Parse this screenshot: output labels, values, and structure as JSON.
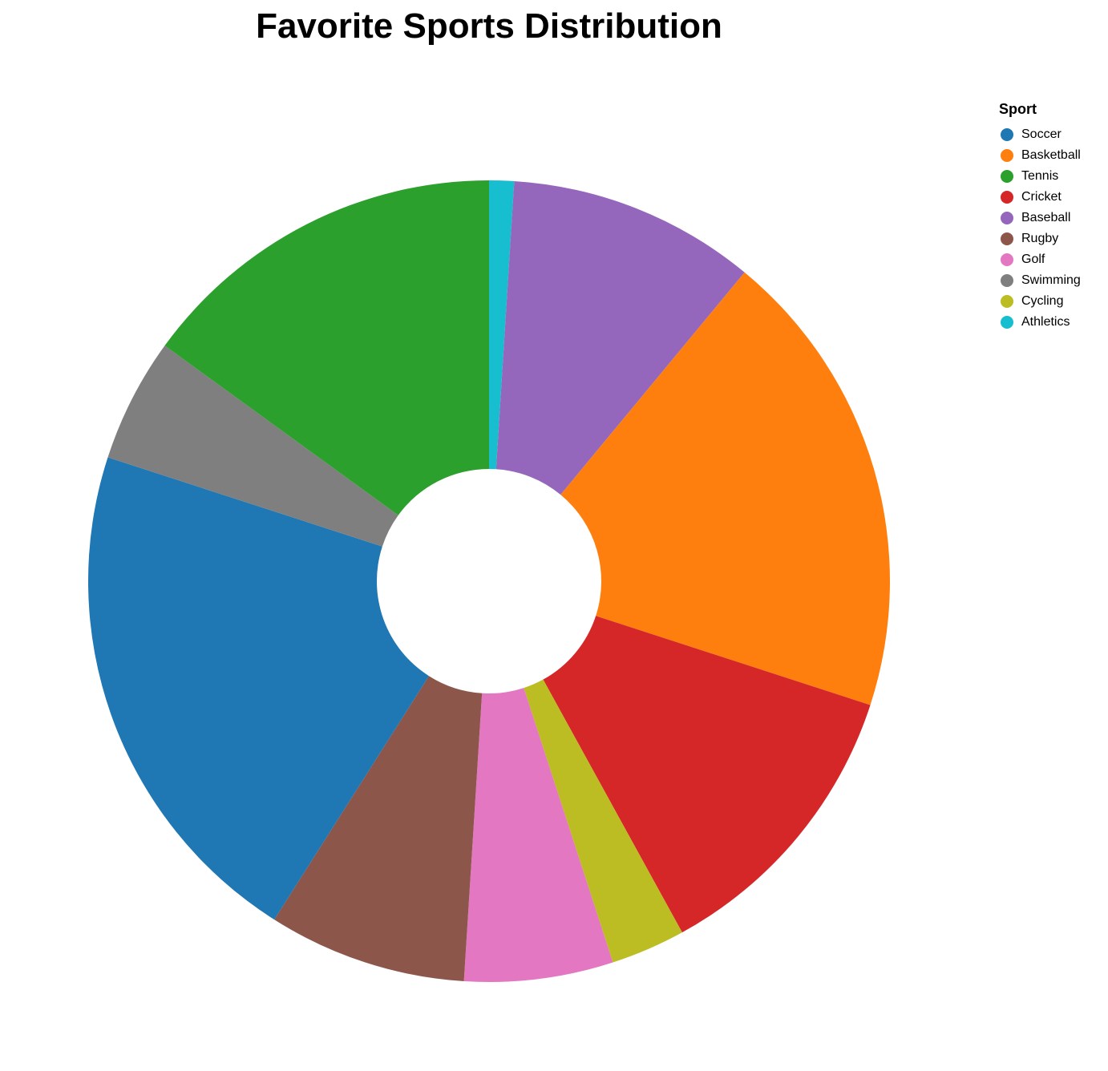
{
  "chart_data": {
    "type": "pie",
    "title": "Favorite Sports Distribution",
    "legend_title": "Sport",
    "legend_position": "top-right",
    "donut": true,
    "slices": [
      {
        "label": "Athletics",
        "value": 1,
        "color": "#17becf"
      },
      {
        "label": "Baseball",
        "value": 10,
        "color": "#9467bd"
      },
      {
        "label": "Basketball",
        "value": 19,
        "color": "#ff7f0e"
      },
      {
        "label": "Cricket",
        "value": 12,
        "color": "#d62728"
      },
      {
        "label": "Cycling",
        "value": 3,
        "color": "#bcbd22"
      },
      {
        "label": "Golf",
        "value": 6,
        "color": "#e377c2"
      },
      {
        "label": "Rugby",
        "value": 8,
        "color": "#8c564b"
      },
      {
        "label": "Soccer",
        "value": 21,
        "color": "#1f77b4"
      },
      {
        "label": "Swimming",
        "value": 5,
        "color": "#7f7f7f"
      },
      {
        "label": "Tennis",
        "value": 15,
        "color": "#2ca02c"
      }
    ],
    "legend_order": [
      "Soccer",
      "Basketball",
      "Tennis",
      "Cricket",
      "Baseball",
      "Rugby",
      "Golf",
      "Swimming",
      "Cycling",
      "Athletics"
    ]
  }
}
